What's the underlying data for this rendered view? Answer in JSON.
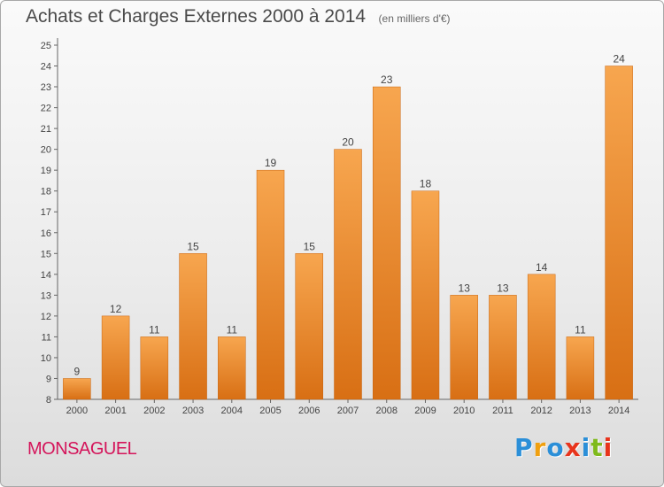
{
  "header": {
    "title": "Achats et Charges Externes 2000 à 2014",
    "subtitle": "(en milliers d'€)"
  },
  "footer": {
    "commune": "MONSAGUEL",
    "logo_text": "Proxiti",
    "logo_colors": [
      "#2b8fd8",
      "#f0a010",
      "#2b8fd8",
      "#e8341c",
      "#2b8fd8",
      "#7fba1c",
      "#e8341c"
    ]
  },
  "chart_data": {
    "type": "bar",
    "categories": [
      "2000",
      "2001",
      "2002",
      "2003",
      "2004",
      "2005",
      "2006",
      "2007",
      "2008",
      "2009",
      "2010",
      "2011",
      "2012",
      "2013",
      "2014"
    ],
    "values": [
      9,
      12,
      11,
      15,
      11,
      19,
      15,
      20,
      23,
      18,
      13,
      13,
      14,
      11,
      24
    ],
    "ylim": [
      8,
      25
    ],
    "yticks": [
      8,
      9,
      10,
      11,
      12,
      13,
      14,
      15,
      16,
      17,
      18,
      19,
      20,
      21,
      22,
      23,
      24,
      25
    ],
    "bar_color_top": "#f7a64f",
    "bar_color_bottom": "#d86f14",
    "grid": false,
    "xlabel": "",
    "ylabel": ""
  }
}
